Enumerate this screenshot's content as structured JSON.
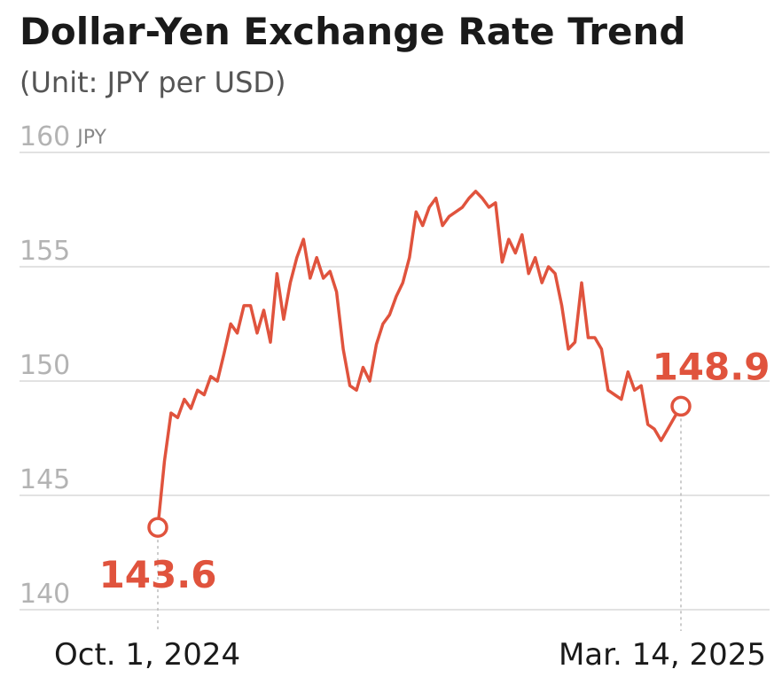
{
  "chart_data": {
    "type": "line",
    "title": "Dollar-Yen Exchange Rate Trend",
    "subtitle": "(Unit: JPY per USD)",
    "y_unit": "JPY",
    "color": "#e0533d",
    "grid": true,
    "ylim": [
      140,
      160
    ],
    "yticks": [
      140,
      145,
      150,
      155,
      160
    ],
    "categories": [
      "Oct. 1, 2024",
      null,
      null,
      null,
      null,
      null,
      null,
      null,
      null,
      null,
      null,
      null,
      null,
      null,
      null,
      null,
      null,
      null,
      null,
      null,
      null,
      null,
      null,
      null,
      null,
      null,
      null,
      null,
      null,
      null,
      null,
      null,
      null,
      null,
      null,
      null,
      null,
      null,
      null,
      null,
      null,
      null,
      null,
      null,
      null,
      null,
      null,
      null,
      null,
      null,
      null,
      null,
      null,
      null,
      null,
      null,
      null,
      null,
      null,
      null,
      null,
      null,
      null,
      null,
      null,
      null,
      null,
      null,
      null,
      null,
      null,
      null,
      null,
      null,
      null,
      null,
      null,
      null,
      null,
      "Mar. 14, 2025"
    ],
    "values": [
      143.6,
      146.5,
      148.6,
      148.4,
      149.2,
      148.8,
      149.6,
      149.4,
      150.2,
      150.0,
      151.2,
      152.5,
      152.1,
      153.3,
      153.3,
      152.1,
      153.1,
      151.7,
      154.7,
      152.7,
      154.3,
      155.4,
      156.2,
      154.5,
      155.4,
      154.5,
      154.8,
      153.9,
      151.4,
      149.8,
      149.6,
      150.6,
      150.0,
      151.6,
      152.5,
      152.9,
      153.7,
      154.3,
      155.4,
      157.4,
      156.8,
      157.6,
      158.0,
      156.8,
      157.2,
      157.4,
      157.6,
      158.0,
      158.3,
      158.0,
      157.6,
      157.8,
      155.2,
      156.2,
      155.6,
      156.4,
      154.7,
      155.4,
      154.3,
      155.0,
      154.7,
      153.3,
      151.4,
      151.7,
      154.3,
      151.9,
      151.9,
      151.4,
      149.6,
      149.4,
      149.2,
      150.4,
      149.6,
      149.8,
      148.1,
      147.9,
      147.4,
      147.9,
      148.4,
      148.9
    ]
  }
}
